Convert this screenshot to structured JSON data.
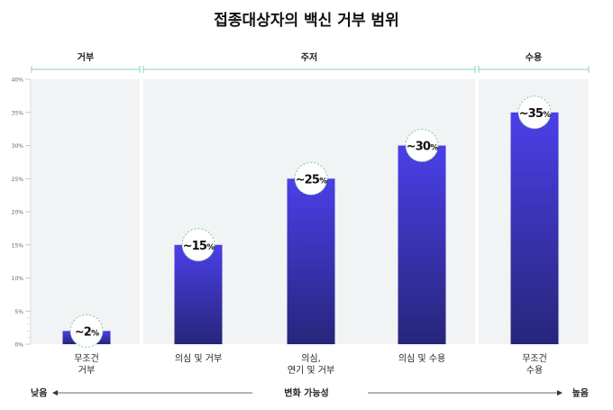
{
  "chart_data": {
    "type": "bar",
    "title": "접종대상자의 백신 거부 범위",
    "groups": [
      {
        "label": "거부",
        "categories": [
          "무조건\n거부"
        ]
      },
      {
        "label": "주저",
        "categories": [
          "의심 및 거부",
          "의심,\n연기 및 거부",
          "의심 및 수용"
        ]
      },
      {
        "label": "수용",
        "categories": [
          "무조건\n수용"
        ]
      }
    ],
    "categories": [
      "무조건\n거부",
      "의심 및 거부",
      "의심,\n연기 및 거부",
      "의심 및 수용",
      "무조건\n수용"
    ],
    "values": [
      2,
      15,
      25,
      30,
      35
    ],
    "data_labels": [
      "~2%",
      "~15%",
      "~25%",
      "~30%",
      "~35%"
    ],
    "yticks": [
      "0%",
      "5%",
      "10%",
      "15%",
      "20%",
      "25%",
      "30%",
      "35%",
      "40%"
    ],
    "ylim": [
      0,
      40
    ],
    "grid": false,
    "xaxis_annotation": {
      "left": "낮음",
      "center": "변화 가능성",
      "right": "높음"
    },
    "colors": {
      "bar_top": "#4b3fe8",
      "bar_bottom": "#26267a",
      "panel": "#f2f3f5",
      "bracket": "#8fd1b0",
      "badge_ring": "#7cc9a0",
      "text": "#222222",
      "tick_text": "#666666"
    }
  }
}
